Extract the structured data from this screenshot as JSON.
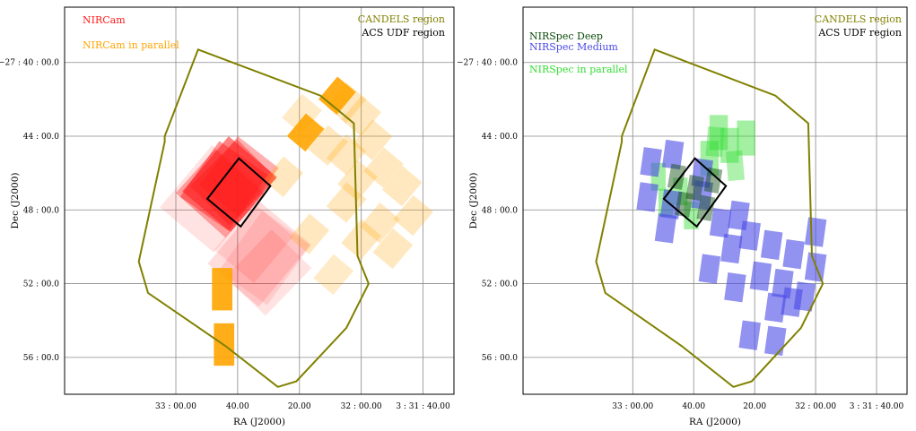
{
  "chart_data": [
    {
      "type": "scatter",
      "title": "",
      "xlabel": "RA (J2000)",
      "ylabel": "Dec (J2000)",
      "xlim": [
        33.6,
        31.5
      ],
      "ylim": [
        58.0,
        37.0
      ],
      "grid": true,
      "x_ticks": [
        {
          "value": 33.0,
          "label": "33 : 00.00"
        },
        {
          "value": 32.6667,
          "label": "40.00"
        },
        {
          "value": 32.3333,
          "label": "20.00"
        },
        {
          "value": 32.0,
          "label": "32 : 00.00"
        },
        {
          "value": 31.6667,
          "label": "3 : 31 : 40.00"
        }
      ],
      "y_ticks": [
        {
          "value": 40,
          "label": "−27 : 40 : 00.0"
        },
        {
          "value": 44,
          "label": "44 : 00.0"
        },
        {
          "value": 48,
          "label": "48 : 00.0"
        },
        {
          "value": 52,
          "label": "52 : 00.0"
        },
        {
          "value": 56,
          "label": "56 : 00.0"
        }
      ],
      "legend": [
        {
          "label": "NIRCam",
          "color": "#ff1a1a",
          "placement": "top-left"
        },
        {
          "label": "NIRCam in parallel",
          "color": "#ffa500",
          "placement": "top-left"
        },
        {
          "label": "CANDELS region",
          "color": "#808000",
          "placement": "top-right"
        },
        {
          "label": "ACS UDF region",
          "color": "#000000",
          "placement": "top-right"
        }
      ],
      "candels_region": [
        [
          32.88,
          39.3
        ],
        [
          32.22,
          41.8
        ],
        [
          32.04,
          43.3
        ],
        [
          32.02,
          50.5
        ],
        [
          31.96,
          52.0
        ],
        [
          32.08,
          54.4
        ],
        [
          32.35,
          57.3
        ],
        [
          32.45,
          57.6
        ],
        [
          32.73,
          55.4
        ],
        [
          33.15,
          52.5
        ],
        [
          33.2,
          50.8
        ],
        [
          33.06,
          44.3
        ],
        [
          33.06,
          44.0
        ],
        [
          32.88,
          39.3
        ]
      ],
      "udf_region": [
        [
          32.66,
          45.2
        ],
        [
          32.49,
          46.7
        ],
        [
          32.65,
          48.9
        ],
        [
          32.83,
          47.4
        ],
        [
          32.66,
          45.2
        ]
      ],
      "series": [
        {
          "name": "NIRCam",
          "color": "#ff1a1a",
          "footprints": [
            {
              "cx": 32.71,
              "cy": 46.6,
              "w": 0.34,
              "h": 3.9,
              "angle": 40,
              "opacity": 0.55
            },
            {
              "cx": 32.74,
              "cy": 46.7,
              "w": 0.32,
              "h": 3.7,
              "angle": 35,
              "opacity": 0.45
            },
            {
              "cx": 32.69,
              "cy": 46.5,
              "w": 0.3,
              "h": 3.6,
              "angle": 45,
              "opacity": 0.4
            },
            {
              "cx": 32.76,
              "cy": 47.1,
              "w": 0.36,
              "h": 3.2,
              "angle": 42,
              "opacity": 0.35
            },
            {
              "cx": 32.66,
              "cy": 46.2,
              "w": 0.28,
              "h": 3.4,
              "angle": 38,
              "opacity": 0.35
            },
            {
              "cx": 32.8,
              "cy": 47.4,
              "w": 0.38,
              "h": 4.4,
              "angle": 40,
              "opacity": 0.12
            },
            {
              "cx": 32.55,
              "cy": 50.4,
              "w": 0.36,
              "h": 4.4,
              "angle": 40,
              "opacity": 0.15
            },
            {
              "cx": 32.52,
              "cy": 50.6,
              "w": 0.32,
              "h": 4.0,
              "angle": 36,
              "opacity": 0.12
            },
            {
              "cx": 32.5,
              "cy": 51.4,
              "w": 0.3,
              "h": 3.6,
              "angle": 44,
              "opacity": 0.12
            },
            {
              "cx": 32.58,
              "cy": 49.8,
              "w": 0.28,
              "h": 3.3,
              "angle": 40,
              "opacity": 0.12
            }
          ]
        },
        {
          "name": "NIRCam in parallel",
          "color": "#ffa500",
          "footprints": [
            {
              "cx": 32.13,
              "cy": 41.8,
              "w": 0.13,
              "h": 1.6,
              "angle": 40,
              "opacity": 0.9
            },
            {
              "cx": 32.3,
              "cy": 43.8,
              "w": 0.13,
              "h": 1.6,
              "angle": 40,
              "opacity": 0.9
            },
            {
              "cx": 32.75,
              "cy": 52.3,
              "w": 0.11,
              "h": 2.3,
              "angle": 0,
              "opacity": 0.9
            },
            {
              "cx": 32.74,
              "cy": 55.3,
              "w": 0.11,
              "h": 2.3,
              "angle": 0,
              "opacity": 0.9
            },
            {
              "cx": 32.08,
              "cy": 42.2,
              "w": 0.14,
              "h": 1.7,
              "angle": 40,
              "opacity": 0.25
            },
            {
              "cx": 32.0,
              "cy": 42.9,
              "w": 0.14,
              "h": 1.7,
              "angle": 40,
              "opacity": 0.25
            },
            {
              "cx": 32.18,
              "cy": 44.5,
              "w": 0.14,
              "h": 1.7,
              "angle": 40,
              "opacity": 0.25
            },
            {
              "cx": 32.08,
              "cy": 45.0,
              "w": 0.14,
              "h": 1.7,
              "angle": 40,
              "opacity": 0.25
            },
            {
              "cx": 31.94,
              "cy": 44.2,
              "w": 0.14,
              "h": 1.7,
              "angle": 40,
              "opacity": 0.25
            },
            {
              "cx": 32.02,
              "cy": 46.4,
              "w": 0.14,
              "h": 1.7,
              "angle": 40,
              "opacity": 0.25
            },
            {
              "cx": 31.88,
              "cy": 45.7,
              "w": 0.14,
              "h": 1.7,
              "angle": 40,
              "opacity": 0.25
            },
            {
              "cx": 31.78,
              "cy": 46.7,
              "w": 0.14,
              "h": 1.7,
              "angle": 40,
              "opacity": 0.25
            },
            {
              "cx": 31.72,
              "cy": 48.3,
              "w": 0.14,
              "h": 1.7,
              "angle": 40,
              "opacity": 0.25
            },
            {
              "cx": 31.9,
              "cy": 48.7,
              "w": 0.14,
              "h": 1.7,
              "angle": 40,
              "opacity": 0.25
            },
            {
              "cx": 31.83,
              "cy": 50.1,
              "w": 0.14,
              "h": 1.7,
              "angle": 40,
              "opacity": 0.25
            },
            {
              "cx": 32.0,
              "cy": 49.6,
              "w": 0.14,
              "h": 1.7,
              "angle": 40,
              "opacity": 0.25
            },
            {
              "cx": 32.08,
              "cy": 47.6,
              "w": 0.14,
              "h": 1.7,
              "angle": 40,
              "opacity": 0.25
            },
            {
              "cx": 32.28,
              "cy": 49.3,
              "w": 0.14,
              "h": 1.7,
              "angle": 40,
              "opacity": 0.25
            },
            {
              "cx": 32.42,
              "cy": 46.2,
              "w": 0.14,
              "h": 1.7,
              "angle": 40,
              "opacity": 0.25
            },
            {
              "cx": 32.32,
              "cy": 42.8,
              "w": 0.14,
              "h": 1.7,
              "angle": 40,
              "opacity": 0.22
            },
            {
              "cx": 32.15,
              "cy": 51.5,
              "w": 0.14,
              "h": 1.7,
              "angle": 40,
              "opacity": 0.22
            }
          ]
        }
      ]
    },
    {
      "type": "scatter",
      "title": "",
      "xlabel": "RA (J2000)",
      "ylabel": "Dec (J2000)",
      "xlim": [
        33.6,
        31.5
      ],
      "ylim": [
        58.0,
        37.0
      ],
      "grid": true,
      "x_ticks": [
        {
          "value": 33.0,
          "label": "33 : 00.00"
        },
        {
          "value": 32.6667,
          "label": "40.00"
        },
        {
          "value": 32.3333,
          "label": "20.00"
        },
        {
          "value": 32.0,
          "label": "32 : 00.00"
        },
        {
          "value": 31.6667,
          "label": "3 : 31 : 40.00"
        }
      ],
      "y_ticks": [
        {
          "value": 40,
          "label": "−27 : 40 : 00.0"
        },
        {
          "value": 44,
          "label": "44 : 00.0"
        },
        {
          "value": 48,
          "label": "48 : 00.0"
        },
        {
          "value": 52,
          "label": "52 : 00.0"
        },
        {
          "value": 56,
          "label": "56 : 00.0"
        }
      ],
      "legend": [
        {
          "label": "NIRSpec Deep",
          "color": "#0a4a0a",
          "placement": "top-left"
        },
        {
          "label": "NIRSpec Medium",
          "color": "#4a4ae6",
          "placement": "top-left"
        },
        {
          "label": "NIRSpec in parallel",
          "color": "#33dd33",
          "placement": "top-left"
        },
        {
          "label": "CANDELS region",
          "color": "#808000",
          "placement": "top-right"
        },
        {
          "label": "ACS UDF region",
          "color": "#000000",
          "placement": "top-right"
        }
      ],
      "candels_region": [
        [
          32.88,
          39.3
        ],
        [
          32.22,
          41.8
        ],
        [
          32.04,
          43.3
        ],
        [
          32.02,
          50.5
        ],
        [
          31.96,
          52.0
        ],
        [
          32.08,
          54.4
        ],
        [
          32.35,
          57.3
        ],
        [
          32.45,
          57.6
        ],
        [
          32.73,
          55.4
        ],
        [
          33.15,
          52.5
        ],
        [
          33.2,
          50.8
        ],
        [
          33.06,
          44.3
        ],
        [
          33.06,
          44.0
        ],
        [
          32.88,
          39.3
        ]
      ],
      "udf_region": [
        [
          32.66,
          45.2
        ],
        [
          32.49,
          46.7
        ],
        [
          32.65,
          48.9
        ],
        [
          32.83,
          47.4
        ],
        [
          32.66,
          45.2
        ]
      ],
      "series": [
        {
          "name": "NIRSpec in parallel",
          "color": "#33dd33",
          "footprints": [
            {
              "cx": 32.53,
              "cy": 43.8,
              "w": 0.1,
              "h": 1.9,
              "angle": 0,
              "opacity": 0.45
            },
            {
              "cx": 32.47,
              "cy": 44.5,
              "w": 0.1,
              "h": 1.9,
              "angle": 0,
              "opacity": 0.45
            },
            {
              "cx": 32.58,
              "cy": 45.2,
              "w": 0.1,
              "h": 1.9,
              "angle": 0,
              "opacity": 0.45
            },
            {
              "cx": 32.38,
              "cy": 44.1,
              "w": 0.1,
              "h": 1.9,
              "angle": 0,
              "opacity": 0.45
            },
            {
              "cx": 32.55,
              "cy": 44.3,
              "w": 0.09,
              "h": 1.6,
              "angle": 5,
              "opacity": 0.4
            },
            {
              "cx": 32.44,
              "cy": 45.6,
              "w": 0.09,
              "h": 1.6,
              "angle": -5,
              "opacity": 0.4
            },
            {
              "cx": 32.82,
              "cy": 47.6,
              "w": 0.08,
              "h": 1.5,
              "angle": 0,
              "opacity": 0.45
            },
            {
              "cx": 32.74,
              "cy": 47.0,
              "w": 0.08,
              "h": 1.5,
              "angle": 0,
              "opacity": 0.45
            },
            {
              "cx": 32.86,
              "cy": 46.2,
              "w": 0.08,
              "h": 1.5,
              "angle": 0,
              "opacity": 0.45
            },
            {
              "cx": 32.68,
              "cy": 48.3,
              "w": 0.08,
              "h": 1.5,
              "angle": 0,
              "opacity": 0.45
            }
          ]
        },
        {
          "name": "NIRSpec Medium",
          "color": "#4a4ae6",
          "footprints": [
            {
              "cx": 32.9,
              "cy": 45.4,
              "w": 0.1,
              "h": 1.5,
              "angle": 8,
              "opacity": 0.6
            },
            {
              "cx": 32.78,
              "cy": 45.0,
              "w": 0.1,
              "h": 1.5,
              "angle": 8,
              "opacity": 0.6
            },
            {
              "cx": 32.62,
              "cy": 46.0,
              "w": 0.1,
              "h": 1.5,
              "angle": 8,
              "opacity": 0.6
            },
            {
              "cx": 32.92,
              "cy": 47.3,
              "w": 0.1,
              "h": 1.5,
              "angle": 8,
              "opacity": 0.6
            },
            {
              "cx": 32.79,
              "cy": 47.7,
              "w": 0.1,
              "h": 1.5,
              "angle": 8,
              "opacity": 0.6
            },
            {
              "cx": 32.62,
              "cy": 47.2,
              "w": 0.1,
              "h": 1.5,
              "angle": 8,
              "opacity": 0.6
            },
            {
              "cx": 32.52,
              "cy": 48.7,
              "w": 0.1,
              "h": 1.5,
              "angle": 8,
              "opacity": 0.6
            },
            {
              "cx": 32.42,
              "cy": 48.3,
              "w": 0.1,
              "h": 1.5,
              "angle": 8,
              "opacity": 0.6
            },
            {
              "cx": 32.36,
              "cy": 49.4,
              "w": 0.1,
              "h": 1.5,
              "angle": 8,
              "opacity": 0.6
            },
            {
              "cx": 32.24,
              "cy": 49.9,
              "w": 0.1,
              "h": 1.5,
              "angle": 8,
              "opacity": 0.6
            },
            {
              "cx": 32.12,
              "cy": 50.4,
              "w": 0.1,
              "h": 1.5,
              "angle": 8,
              "opacity": 0.6
            },
            {
              "cx": 32.46,
              "cy": 50.1,
              "w": 0.1,
              "h": 1.5,
              "angle": 8,
              "opacity": 0.6
            },
            {
              "cx": 32.58,
              "cy": 51.2,
              "w": 0.1,
              "h": 1.5,
              "angle": 8,
              "opacity": 0.6
            },
            {
              "cx": 32.44,
              "cy": 52.2,
              "w": 0.1,
              "h": 1.5,
              "angle": 8,
              "opacity": 0.6
            },
            {
              "cx": 32.3,
              "cy": 51.6,
              "w": 0.1,
              "h": 1.5,
              "angle": 8,
              "opacity": 0.6
            },
            {
              "cx": 32.18,
              "cy": 52.0,
              "w": 0.1,
              "h": 1.5,
              "angle": 8,
              "opacity": 0.6
            },
            {
              "cx": 32.06,
              "cy": 52.7,
              "w": 0.1,
              "h": 1.5,
              "angle": 8,
              "opacity": 0.6
            },
            {
              "cx": 32.0,
              "cy": 51.1,
              "w": 0.1,
              "h": 1.5,
              "angle": 8,
              "opacity": 0.6
            },
            {
              "cx": 32.22,
              "cy": 53.3,
              "w": 0.1,
              "h": 1.5,
              "angle": 8,
              "opacity": 0.6
            },
            {
              "cx": 32.36,
              "cy": 54.8,
              "w": 0.1,
              "h": 1.5,
              "angle": 8,
              "opacity": 0.6
            },
            {
              "cx": 32.22,
              "cy": 55.1,
              "w": 0.1,
              "h": 1.5,
              "angle": 8,
              "opacity": 0.6
            },
            {
              "cx": 32.13,
              "cy": 53.0,
              "w": 0.1,
              "h": 1.5,
              "angle": 8,
              "opacity": 0.6
            },
            {
              "cx": 32.0,
              "cy": 49.2,
              "w": 0.1,
              "h": 1.5,
              "angle": 8,
              "opacity": 0.6
            },
            {
              "cx": 32.82,
              "cy": 49.0,
              "w": 0.1,
              "h": 1.5,
              "angle": 8,
              "opacity": 0.6
            }
          ]
        },
        {
          "name": "NIRSpec Deep",
          "color": "#0a4a0a",
          "footprints": [
            {
              "cx": 32.76,
              "cy": 46.2,
              "w": 0.08,
              "h": 1.3,
              "angle": 10,
              "opacity": 0.45
            },
            {
              "cx": 32.66,
              "cy": 46.8,
              "w": 0.08,
              "h": 1.3,
              "angle": 10,
              "opacity": 0.45
            },
            {
              "cx": 32.56,
              "cy": 46.4,
              "w": 0.08,
              "h": 1.3,
              "angle": 10,
              "opacity": 0.45
            },
            {
              "cx": 32.72,
              "cy": 47.7,
              "w": 0.08,
              "h": 1.3,
              "angle": 10,
              "opacity": 0.45
            },
            {
              "cx": 32.6,
              "cy": 47.9,
              "w": 0.08,
              "h": 1.3,
              "angle": 10,
              "opacity": 0.45
            }
          ]
        }
      ]
    }
  ]
}
